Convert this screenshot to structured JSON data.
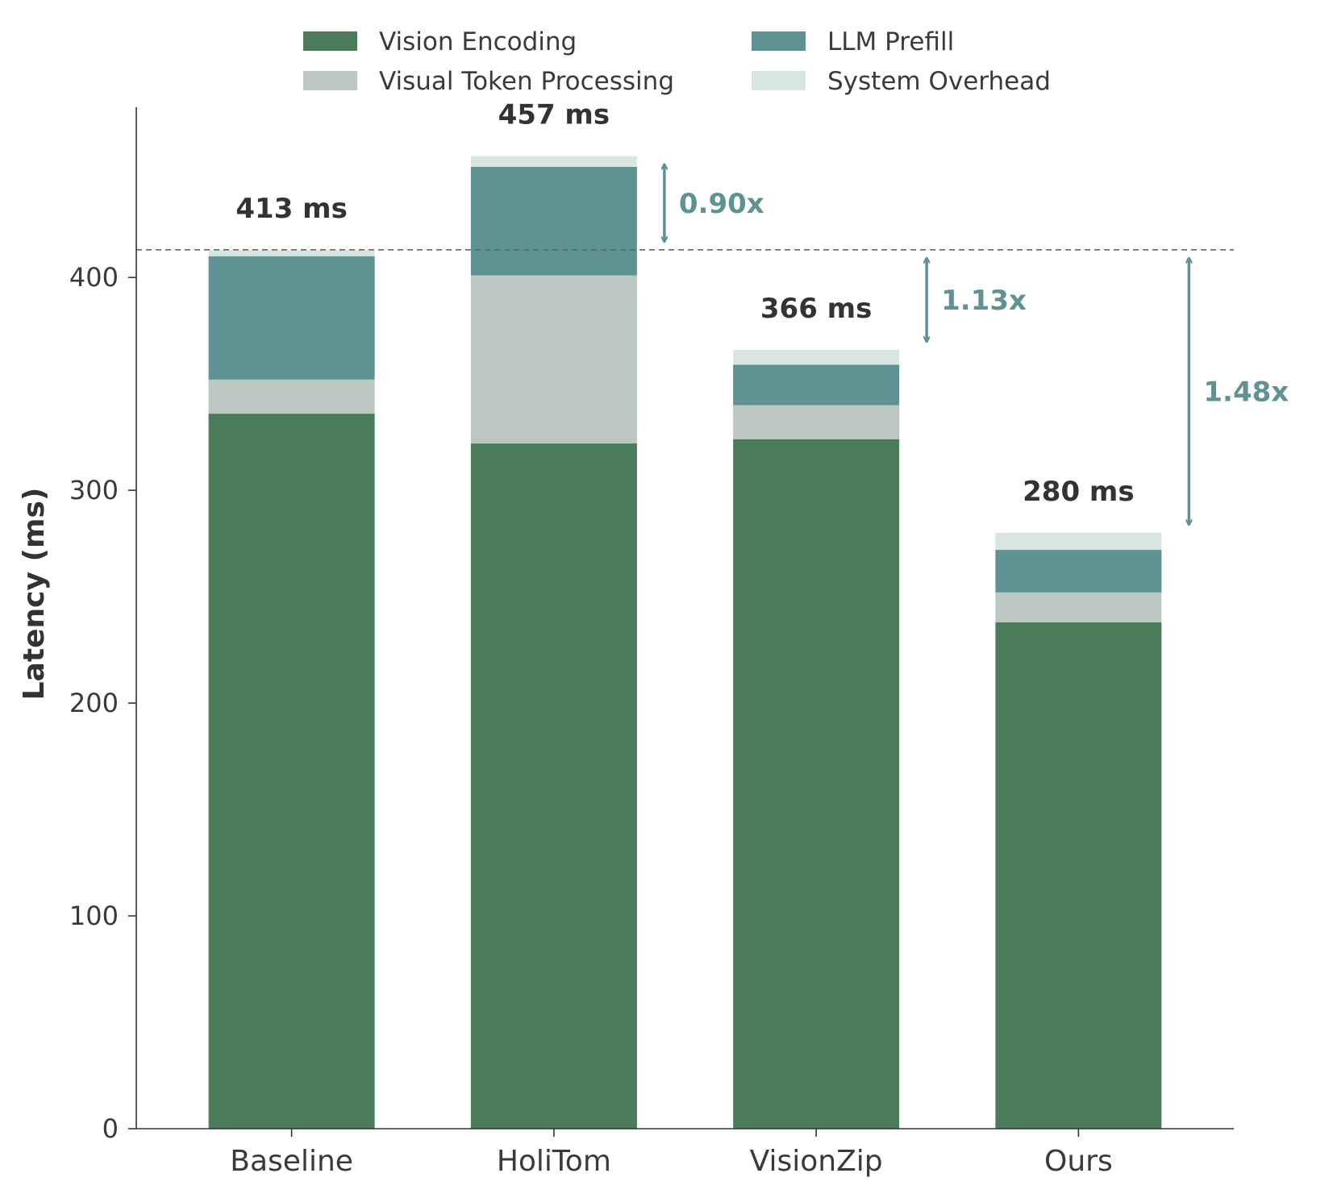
{
  "chart_data": {
    "type": "bar",
    "stacked": true,
    "categories": [
      "Baseline",
      "HoliTom",
      "VisionZip",
      "Ours"
    ],
    "series": [
      {
        "name": "Vision Encoding",
        "color": "#4a7c59",
        "values": [
          336,
          322,
          324,
          238
        ]
      },
      {
        "name": "Visual Token Processing",
        "color": "#bdc7c1",
        "values": [
          16,
          79,
          16,
          14
        ]
      },
      {
        "name": "LLM Prefill",
        "color": "#5f9292",
        "values": [
          58,
          51,
          19,
          20
        ]
      },
      {
        "name": "System Overhead",
        "color": "#d8e6e1",
        "values": [
          3,
          5,
          7,
          8
        ]
      }
    ],
    "totals": [
      413,
      457,
      366,
      280
    ],
    "total_labels": [
      "413 ms",
      "457 ms",
      "366 ms",
      "280 ms"
    ],
    "ylabel": "Latency (ms)",
    "xlabel": "",
    "ylim": [
      0,
      480
    ],
    "yticks": [
      0,
      100,
      200,
      300,
      400
    ],
    "reference_line": {
      "value": 413,
      "style": "dashed"
    },
    "speedups": [
      {
        "label": "0.90x",
        "category": "HoliTom",
        "from": 413,
        "to": 457
      },
      {
        "label": "1.13x",
        "category": "VisionZip",
        "from": 366,
        "to": 413
      },
      {
        "label": "1.48x",
        "category": "Ours",
        "from": 280,
        "to": 413
      }
    ],
    "speedup_color": "#5f9292",
    "legend_position": "top-center",
    "grid": false
  }
}
